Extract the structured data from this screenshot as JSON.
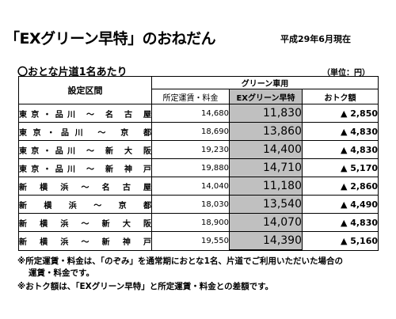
{
  "header": {
    "title": "「EXグリーン早特」のおねだん",
    "date": "平成29年6月現在",
    "subtitle": "〇おとな片道1名あたり",
    "unit": "（単位：円）"
  },
  "table": {
    "col_section": "設定区間",
    "col_green": "グリーン車用",
    "col_regular": "所定運賃・料金",
    "col_ex": "EXグリーン早特",
    "col_savings": "おトク額",
    "rows": [
      {
        "section": "東京・品川 〜 名 古 屋",
        "regular": "14,680",
        "ex": "11,830",
        "savings": "▲ 2,850"
      },
      {
        "section": "東京・品川 〜 京 都",
        "regular": "18,690",
        "ex": "13,860",
        "savings": "▲ 4,830"
      },
      {
        "section": "東京・品川 〜 新 大 阪",
        "regular": "19,230",
        "ex": "14,400",
        "savings": "▲ 4,830"
      },
      {
        "section": "東京・品川 〜 新 神 戸",
        "regular": "19,880",
        "ex": "14,710",
        "savings": "▲ 5,170"
      },
      {
        "section": "新 横 浜 〜 名 古 屋",
        "regular": "14,040",
        "ex": "11,180",
        "savings": "▲ 2,860"
      },
      {
        "section": "新 横 浜 〜 京 都",
        "regular": "18,030",
        "ex": "13,540",
        "savings": "▲ 4,490"
      },
      {
        "section": "新 横 浜 〜 新 大 阪",
        "regular": "18,900",
        "ex": "14,070",
        "savings": "▲ 4,830"
      },
      {
        "section": "新 横 浜 〜 新 神 戸",
        "regular": "19,550",
        "ex": "14,390",
        "savings": "▲ 5,160"
      }
    ]
  },
  "notes": {
    "note1_line1": "※所定運賃・料金は、「のぞみ」を通常期におとな1名、片道でご利用いただいた場合の",
    "note1_line2": "運賃・料金です。",
    "note2": "※おトク額は、「EXグリーン早特」と所定運賃・料金との差額です。"
  }
}
